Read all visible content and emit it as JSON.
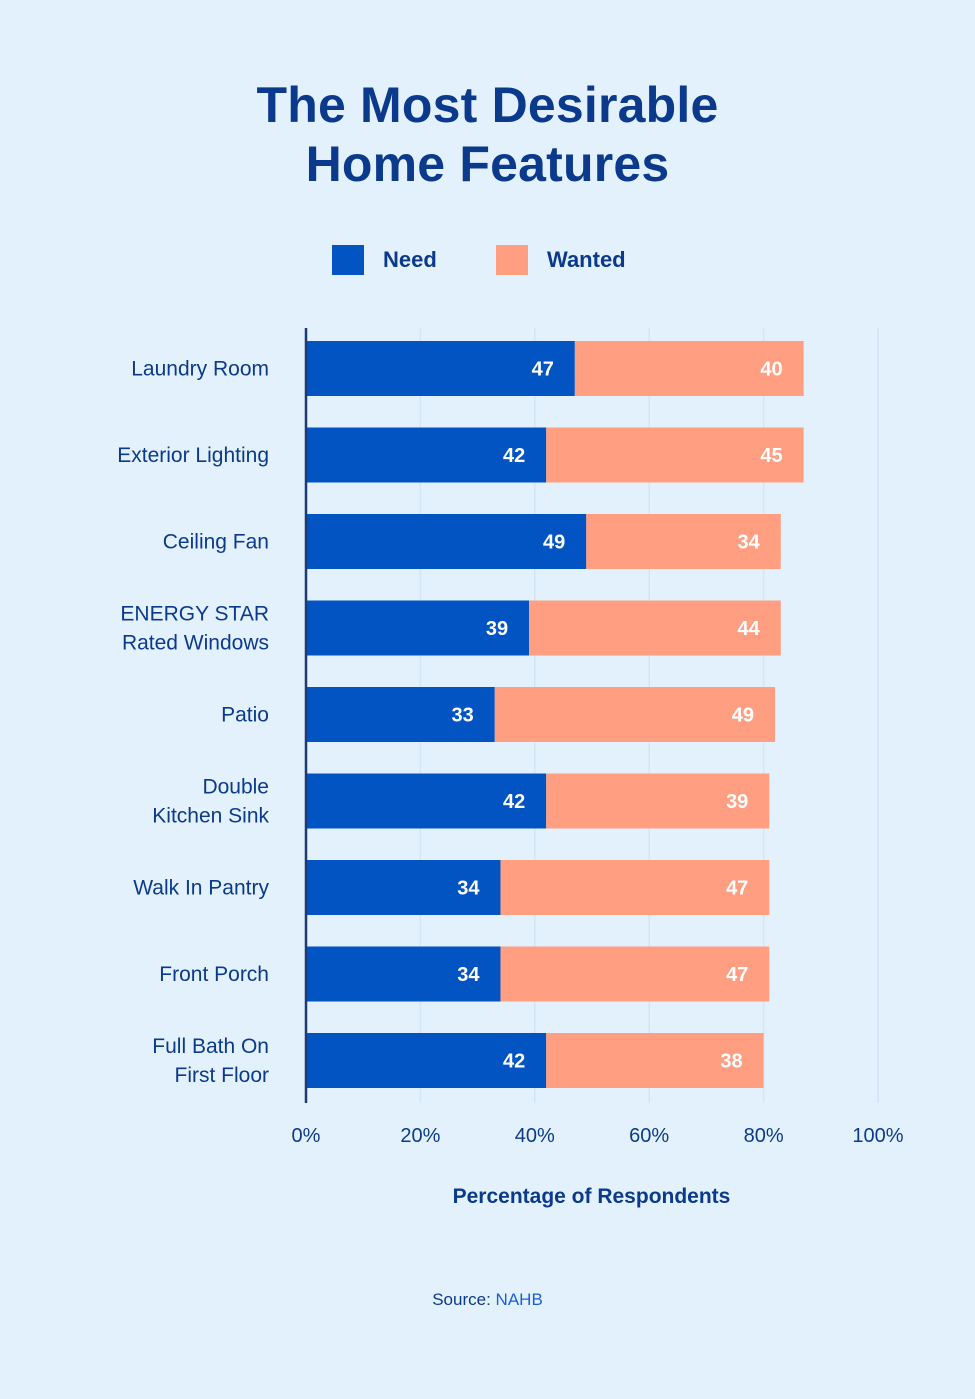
{
  "chart_data": {
    "type": "bar",
    "orientation": "horizontal",
    "stacked": true,
    "title_lines": [
      "The Most Desirable",
      "Home Features"
    ],
    "categories": [
      [
        "Laundry Room"
      ],
      [
        "Exterior Lighting"
      ],
      [
        "Ceiling Fan"
      ],
      [
        "ENERGY STAR",
        "Rated Windows"
      ],
      [
        "Patio"
      ],
      [
        "Double",
        "Kitchen Sink"
      ],
      [
        "Walk In Pantry"
      ],
      [
        "Front Porch"
      ],
      [
        "Full Bath On",
        "First Floor"
      ]
    ],
    "series": [
      {
        "name": "Need",
        "color": "#0254c3",
        "values": [
          47,
          42,
          49,
          39,
          33,
          42,
          34,
          34,
          42
        ]
      },
      {
        "name": "Wanted",
        "color": "#ff9e80",
        "values": [
          40,
          45,
          34,
          44,
          49,
          39,
          47,
          47,
          38
        ]
      }
    ],
    "xlabel": "Percentage of Respondents",
    "xlim": [
      0,
      100
    ],
    "xticks": [
      "0%",
      "20%",
      "40%",
      "60%",
      "80%",
      "100%"
    ],
    "grid": true,
    "legend_position": "top-center"
  },
  "source": {
    "prefix": "Source:",
    "value": "NAHB"
  },
  "colors": {
    "background": "#e3f1fc",
    "text": "#0b3a8c",
    "gridline": "#d2e6f7",
    "axis": "#1c3a78"
  }
}
